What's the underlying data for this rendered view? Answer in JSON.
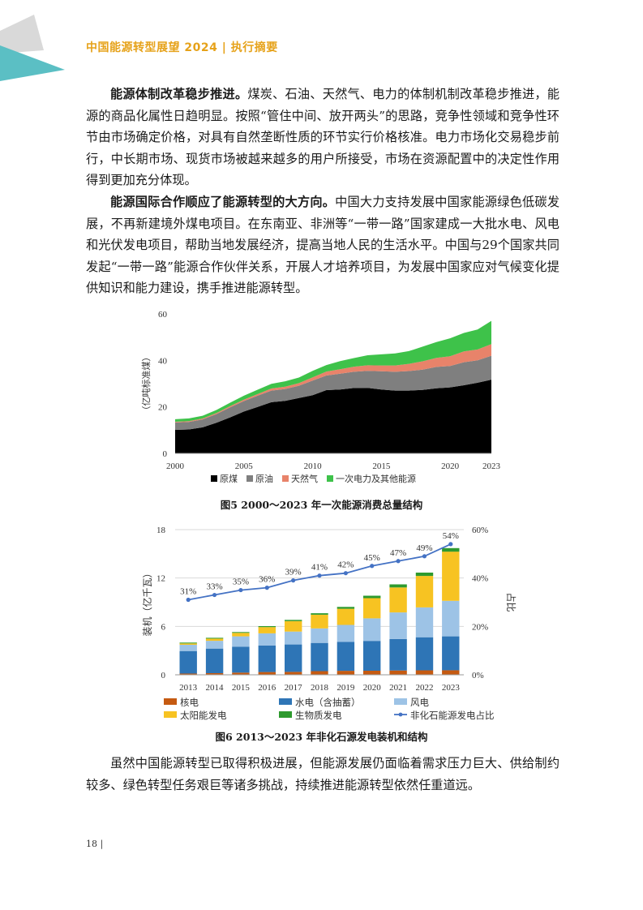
{
  "header": {
    "title": "中国能源转型展望 2024 | 执行摘要"
  },
  "paragraphs": [
    {
      "lead": "能源体制改革稳步推进。",
      "text": "煤炭、石油、天然气、电力的体制机制改革稳步推进，能源的商品化属性日趋明显。按照“管住中间、放开两头”的思路，竞争性领域和竞争性环节由市场确定价格，对具有自然垄断性质的环节实行价格核准。电力市场化交易稳步前行，中长期市场、现货市场被越来越多的用户所接受，市场在资源配置中的决定性作用得到更加充分体现。"
    },
    {
      "lead": "能源国际合作顺应了能源转型的大方向。",
      "text": "中国大力支持发展中国家能源绿色低碳发展，不再新建境外煤电项目。在东南亚、非洲等“一带一路”国家建成一大批水电、风电和光伏发电项目，帮助当地发展经济，提高当地人民的生活水平。中国与29个国家共同发起“一带一路”能源合作伙伴关系，开展人才培养项目，为发展中国家应对气候变化提供知识和能力建设，携手推进能源转型。"
    },
    {
      "lead": "",
      "text": "虽然中国能源转型已取得积极进展，但能源发展仍面临着需求压力巨大、供给制约较多、绿色转型任务艰巨等诸多挑战，持续推进能源转型依然任重道远。"
    }
  ],
  "page_number": "18 |",
  "figures": [
    {
      "caption": "图5  2000～2023 年一次能源消费总量结构"
    },
    {
      "caption": "图6  2013～2023 年非化石源发电装机和结构"
    }
  ],
  "colors": {
    "header": "#e6a21a",
    "teal": "#5bbfc4",
    "coal": "#000000",
    "oil": "#7f7f7f",
    "gas": "#e8836a",
    "primary_elec": "#3ec24a",
    "nuclear": "#c55a11",
    "hydro": "#2e75b6",
    "wind": "#9dc3e6",
    "solar": "#f7c322",
    "biomass": "#2e9a2e",
    "share_line": "#4472c4"
  },
  "chart_data": [
    {
      "type": "area",
      "ylabel": "（亿吨标准煤）",
      "ylim": [
        0,
        60
      ],
      "yticks": [
        "0",
        "20",
        "40",
        "60"
      ],
      "xticks": [
        "2000",
        "2005",
        "2010",
        "2015",
        "2020",
        "2023"
      ],
      "x": [
        2000,
        2001,
        2002,
        2003,
        2004,
        2005,
        2006,
        2007,
        2008,
        2009,
        2010,
        2011,
        2012,
        2013,
        2014,
        2015,
        2016,
        2017,
        2018,
        2019,
        2020,
        2021,
        2022,
        2023
      ],
      "stacked": true,
      "legend_position": "bottom",
      "series": [
        {
          "name": "原煤",
          "color": "#000000",
          "values": [
            10.1,
            10.3,
            11.2,
            13.2,
            15.5,
            18.0,
            20.0,
            22.0,
            22.6,
            23.8,
            25.0,
            27.2,
            27.5,
            28.1,
            28.2,
            27.5,
            27.0,
            27.0,
            27.3,
            28.0,
            28.4,
            29.3,
            30.4,
            31.7
          ]
        },
        {
          "name": "原油",
          "color": "#7f7f7f",
          "values": [
            3.2,
            3.2,
            3.4,
            3.7,
            4.3,
            4.5,
            4.8,
            5.0,
            5.1,
            5.3,
            6.3,
            6.3,
            6.8,
            7.0,
            7.3,
            7.8,
            8.1,
            8.4,
            8.7,
            9.2,
            9.2,
            9.9,
            9.6,
            10.3
          ]
        },
        {
          "name": "天然气",
          "color": "#e8836a",
          "values": [
            0.3,
            0.35,
            0.4,
            0.45,
            0.5,
            0.6,
            0.7,
            0.9,
            1.0,
            1.1,
            1.4,
            1.7,
            1.9,
            2.2,
            2.4,
            2.5,
            2.7,
            3.1,
            3.6,
            3.9,
            4.2,
            4.7,
            4.7,
            5.0
          ]
        },
        {
          "name": "一次电力及其他能源",
          "color": "#3ec24a",
          "values": [
            1.1,
            1.2,
            1.2,
            1.3,
            1.5,
            1.7,
            1.9,
            2.0,
            2.3,
            2.4,
            2.8,
            2.8,
            3.5,
            3.7,
            4.3,
            4.8,
            5.2,
            5.5,
            6.3,
            6.8,
            7.7,
            7.9,
            8.6,
            10.0
          ]
        }
      ]
    },
    {
      "type": "bar",
      "ylabel_left": "装机（亿千瓦）",
      "ylabel_right": "占比",
      "ylim_left": [
        0,
        18
      ],
      "ylim_right": [
        0,
        60
      ],
      "yticks_left": [
        "0",
        "6",
        "12",
        "18"
      ],
      "yticks_right": [
        "0%",
        "20%",
        "40%",
        "60%"
      ],
      "categories": [
        "2013",
        "2014",
        "2015",
        "2016",
        "2017",
        "2018",
        "2019",
        "2020",
        "2021",
        "2022",
        "2023"
      ],
      "stacked": true,
      "legend_position": "bottom",
      "series": [
        {
          "name": "核电",
          "color": "#c55a11",
          "values": [
            0.15,
            0.2,
            0.27,
            0.34,
            0.36,
            0.45,
            0.49,
            0.5,
            0.53,
            0.56,
            0.57
          ]
        },
        {
          "name": "水电（含抽蓄）",
          "color": "#2e75b6",
          "values": [
            2.8,
            3.05,
            3.2,
            3.3,
            3.4,
            3.5,
            3.6,
            3.7,
            3.9,
            4.1,
            4.2
          ]
        },
        {
          "name": "风电",
          "color": "#9dc3e6",
          "values": [
            0.77,
            0.96,
            1.3,
            1.5,
            1.6,
            1.8,
            2.1,
            2.8,
            3.3,
            3.7,
            4.4
          ]
        },
        {
          "name": "太阳能发电",
          "color": "#f7c322",
          "values": [
            0.17,
            0.28,
            0.43,
            0.77,
            1.3,
            1.7,
            2.0,
            2.5,
            3.1,
            3.9,
            6.1
          ]
        },
        {
          "name": "生物质发电",
          "color": "#2e9a2e",
          "values": [
            0.1,
            0.1,
            0.1,
            0.12,
            0.15,
            0.18,
            0.23,
            0.3,
            0.38,
            0.41,
            0.44
          ]
        }
      ],
      "line_series": {
        "name": "非化石能源发电占比",
        "color": "#4472c4",
        "axis": "right",
        "values": [
          31,
          33,
          35,
          36,
          39,
          41,
          42,
          45,
          47,
          49,
          54
        ],
        "labels": [
          "31%",
          "33%",
          "35%",
          "36%",
          "39%",
          "41%",
          "42%",
          "45%",
          "47%",
          "49%",
          "54%"
        ]
      }
    }
  ]
}
